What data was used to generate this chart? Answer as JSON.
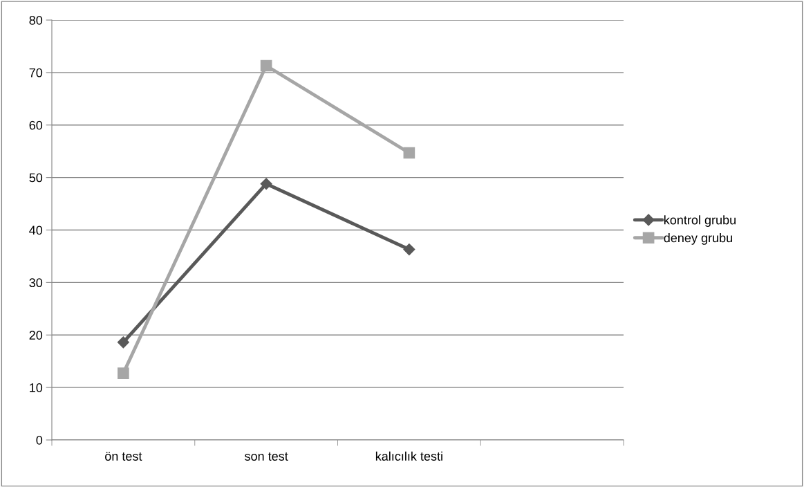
{
  "chart_data": {
    "type": "line",
    "categories": [
      "ön test",
      "son test",
      "kalıcılık testi",
      null
    ],
    "series": [
      {
        "name": "kontrol grubu",
        "color": "#595959",
        "marker": "diamond",
        "values": [
          18.6,
          48.8,
          36.3,
          null
        ]
      },
      {
        "name": "deney grubu",
        "color": "#a6a6a6",
        "marker": "square",
        "values": [
          12.7,
          71.3,
          54.7,
          null
        ]
      }
    ],
    "ylim": [
      0,
      80
    ],
    "yticks": [
      0,
      10,
      20,
      30,
      40,
      50,
      60,
      70,
      80
    ],
    "grid": "y",
    "legend": "right",
    "line_style": "solid"
  }
}
